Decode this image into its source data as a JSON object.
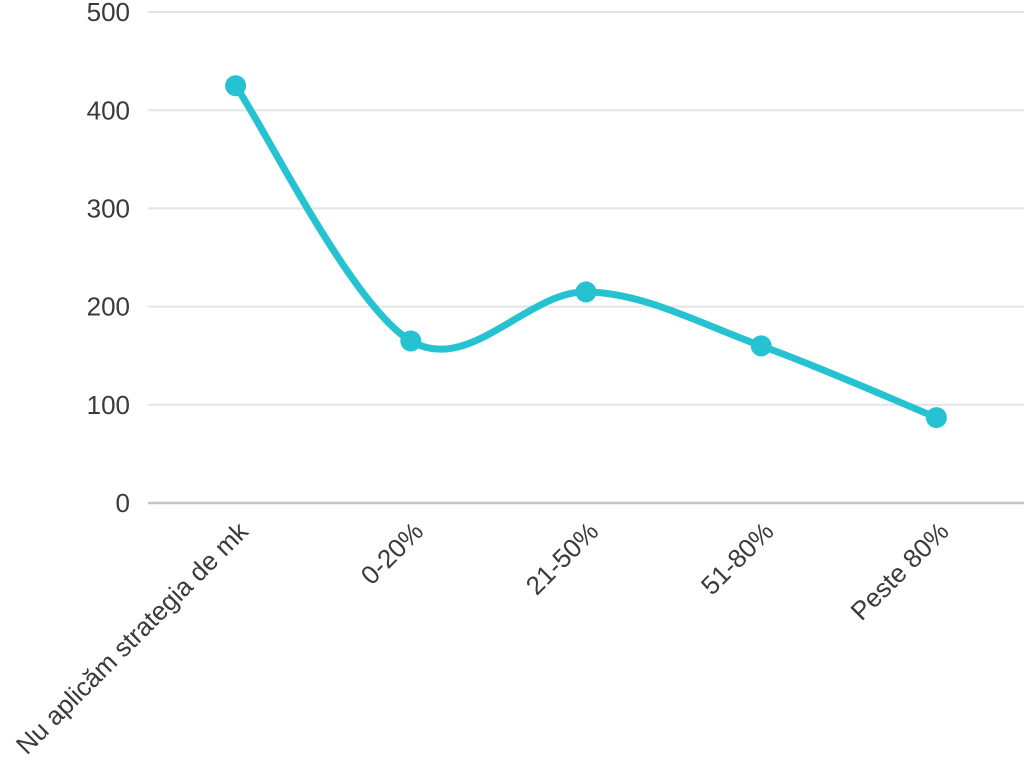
{
  "chart_data": {
    "type": "line",
    "categories": [
      "Nu aplicăm strategia de mk",
      "0-20%",
      "21-50%",
      "51-80%",
      "Peste 80%"
    ],
    "values": [
      425,
      165,
      215,
      160,
      87
    ],
    "title": "",
    "xlabel": "",
    "ylabel": "",
    "ylim": [
      0,
      500
    ],
    "yticks": [
      0,
      100,
      200,
      300,
      400,
      500
    ],
    "grid": true,
    "legend": false,
    "smooth": true,
    "x_label_rotation_deg": -45,
    "colors": {
      "line": "#25c2d2",
      "point": "#25c2d2",
      "gridline": "#e4e4e4",
      "zero_line": "#c4c4c4",
      "tick_label": "#3a3a3a",
      "background": "#ffffff"
    }
  }
}
